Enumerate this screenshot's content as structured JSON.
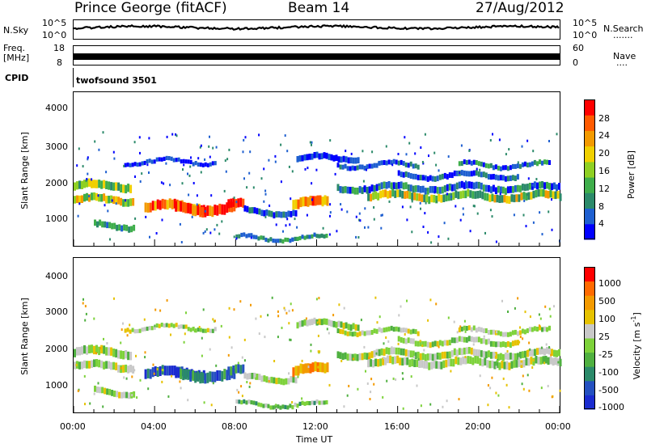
{
  "header": {
    "site": "Prince George (fitACF)",
    "beam": "Beam 14",
    "date": "27/Aug/2012"
  },
  "panels": {
    "nsky": {
      "label": "N.Sky",
      "ticks": [
        "10^5",
        "10^0"
      ]
    },
    "nsearch": {
      "label": "N.Search",
      "ticks": [
        "10^5",
        "10^0"
      ],
      "dots": "......."
    },
    "freq": {
      "label_top": "Freq.",
      "label_unit": "[MHz]",
      "ticks": [
        "18",
        "8"
      ]
    },
    "nave": {
      "label": "Nave",
      "ticks": [
        "60",
        "0"
      ],
      "dots": "...."
    },
    "cpid": {
      "label": "CPID",
      "program": "twofsound 3501"
    }
  },
  "colors": {
    "scatter_fill": "#000000",
    "ground_scatter": "#c8c8c8"
  },
  "chart_data": [
    {
      "type": "heatmap",
      "name": "power",
      "ylabel": "Slant Range [km]",
      "yticks": [
        "4000",
        "3000",
        "2000",
        "1000"
      ],
      "ylim": [
        180,
        4600
      ],
      "xlim": [
        0,
        24
      ],
      "colorbar": {
        "label": "Power [dB]",
        "ticks": [
          "28",
          "24",
          "20",
          "16",
          "12",
          "8",
          "4"
        ],
        "colors": [
          "#0000ff",
          "#1e5fd0",
          "#2b8a6a",
          "#3fae4b",
          "#8fd023",
          "#f0d000",
          "#f39a00",
          "#ff5a00",
          "#ff0000"
        ]
      }
    },
    {
      "type": "heatmap",
      "name": "velocity",
      "ylabel": "Slant Range [km]",
      "yticks": [
        "4000",
        "3000",
        "2000",
        "1000"
      ],
      "ylim": [
        180,
        4600
      ],
      "xlim": [
        0,
        24
      ],
      "colorbar": {
        "label": "Velocity [m s",
        "label_sup": "-1",
        "label_end": "]",
        "ticks": [
          "1000",
          "500",
          "100",
          "25",
          "-25",
          "-100",
          "-500",
          "-1000"
        ],
        "colors": [
          "#1a2bd0",
          "#2450c0",
          "#2b8a6a",
          "#4fb040",
          "#7dd23a",
          "#c8c8c8",
          "#e6c200",
          "#f39a00",
          "#ff6a00",
          "#ff0000"
        ]
      }
    }
  ],
  "xaxis": {
    "title": "Time UT",
    "ticks": [
      "00:00",
      "04:00",
      "08:00",
      "12:00",
      "16:00",
      "20:00",
      "00:00"
    ]
  }
}
